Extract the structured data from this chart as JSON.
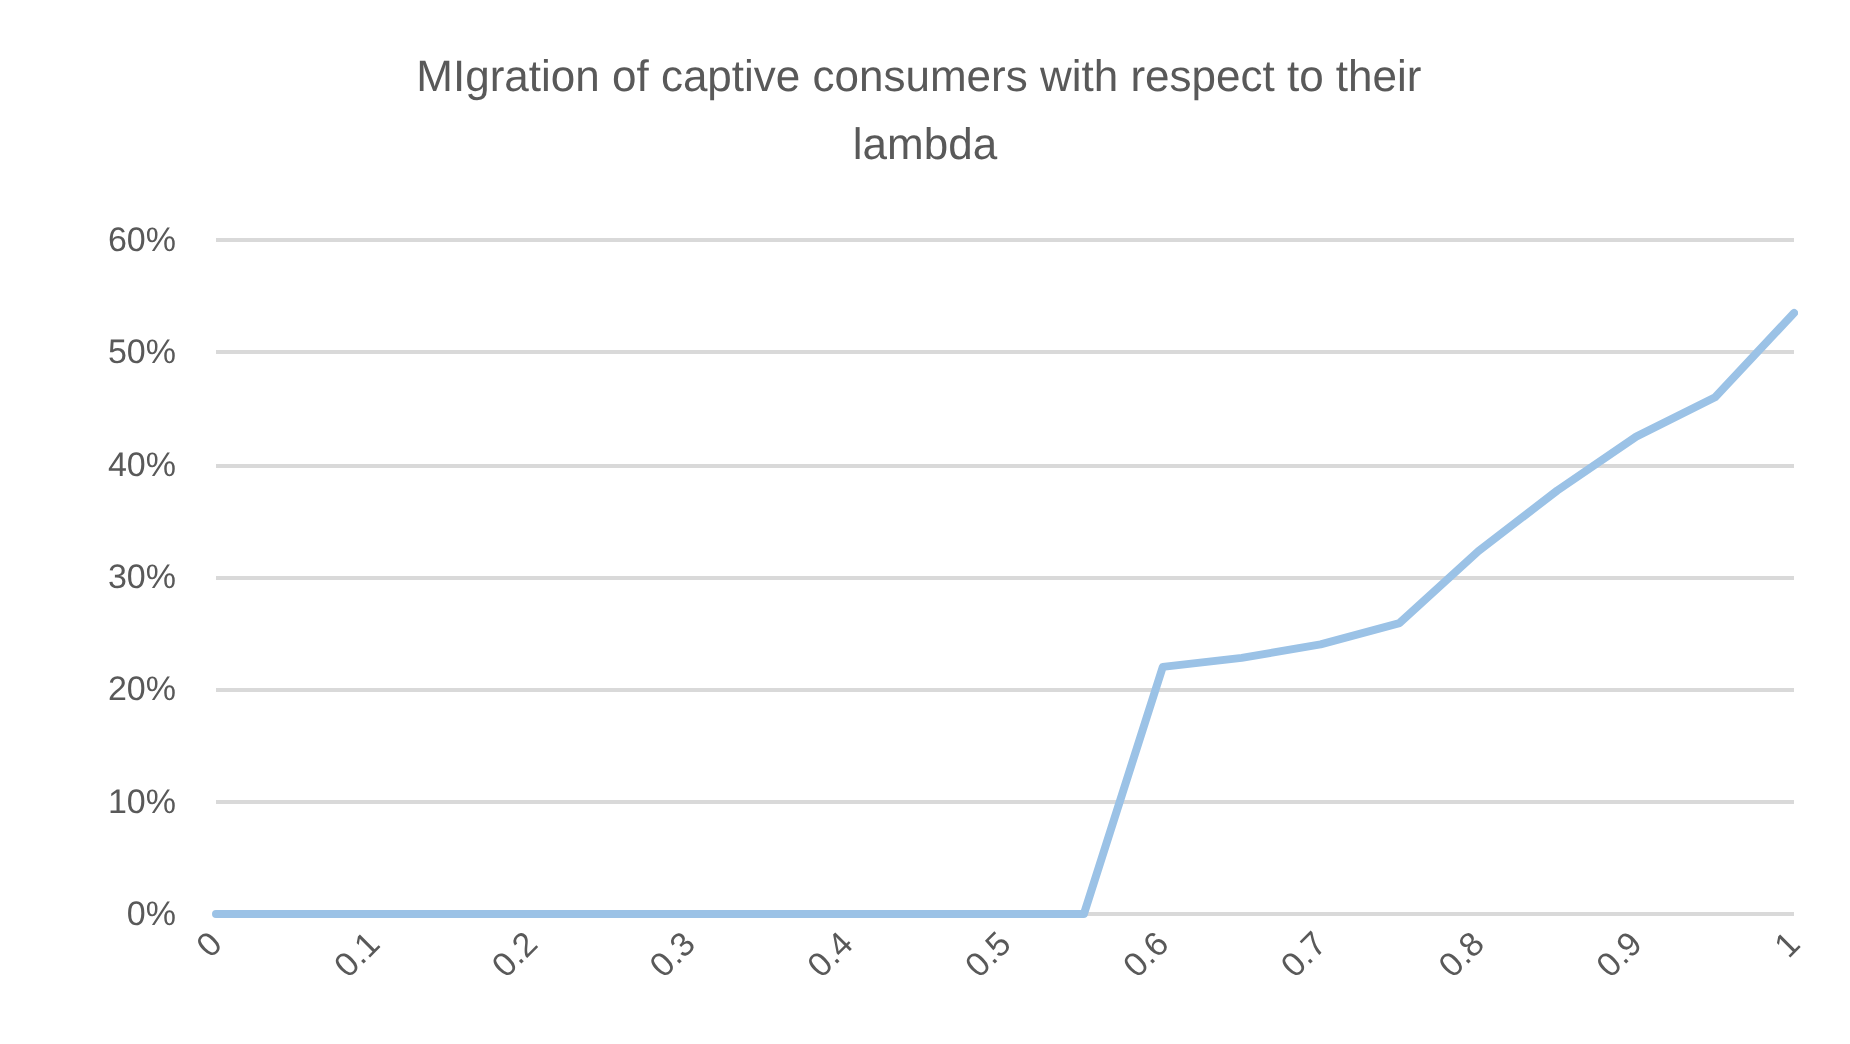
{
  "chart_data": {
    "type": "line",
    "title": "MIgration of captive consumers with respect to their lambda",
    "x": [
      0,
      0.05,
      0.1,
      0.15,
      0.2,
      0.25,
      0.3,
      0.35,
      0.4,
      0.45,
      0.5,
      0.55,
      0.6,
      0.65,
      0.7,
      0.75,
      0.8,
      0.85,
      0.9,
      0.95,
      1
    ],
    "series": [
      {
        "color": "#9bc2e6",
        "values": [
          0,
          0,
          0,
          0,
          0,
          0,
          0,
          0,
          0,
          0,
          0,
          0,
          22,
          22.8,
          24,
          25.9,
          32.3,
          37.7,
          42.5,
          46,
          53.5
        ]
      }
    ],
    "xlim": [
      0,
      1
    ],
    "xticks": [
      0,
      0.1,
      0.2,
      0.3,
      0.4,
      0.5,
      0.6,
      0.7,
      0.8,
      0.9,
      1
    ],
    "ylim": [
      0,
      60
    ],
    "yticks": [
      {
        "value": 0,
        "label": "0%"
      },
      {
        "value": 10,
        "label": "10%"
      },
      {
        "value": 20,
        "label": "20%"
      },
      {
        "value": 30,
        "label": "30%"
      },
      {
        "value": 40,
        "label": "40%"
      },
      {
        "value": 50,
        "label": "50%"
      },
      {
        "value": 60,
        "label": "60%"
      }
    ],
    "grid": "y",
    "marker": "none",
    "line_style": "solid"
  }
}
